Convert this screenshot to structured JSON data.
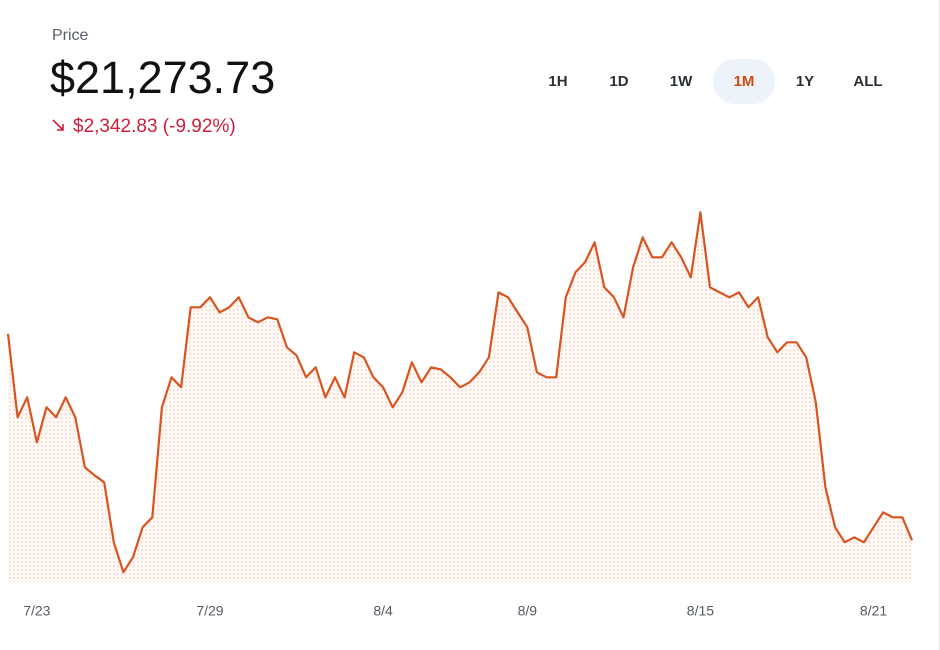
{
  "chart_data": {
    "type": "line",
    "title": "Price",
    "current_price": "$21,273.73",
    "change": "$2,342.83 (-9.92%)",
    "ranges": [
      "1H",
      "1D",
      "1W",
      "1M",
      "1Y",
      "ALL"
    ],
    "selected_range": 3,
    "color": "#d9541e",
    "change_color": "#cc1f3a",
    "ylim": [
      20800,
      25250
    ],
    "categories": [
      null,
      null,
      null,
      "7/23",
      null,
      null,
      null,
      null,
      null,
      null,
      null,
      null,
      null,
      null,
      null,
      null,
      null,
      null,
      null,
      null,
      null,
      "7/29",
      null,
      null,
      null,
      null,
      null,
      null,
      null,
      null,
      null,
      null,
      null,
      null,
      null,
      null,
      null,
      null,
      null,
      "8/4",
      null,
      null,
      null,
      null,
      null,
      null,
      null,
      null,
      null,
      null,
      null,
      null,
      null,
      null,
      "8/9",
      null,
      null,
      null,
      null,
      null,
      null,
      null,
      null,
      null,
      null,
      null,
      null,
      null,
      null,
      null,
      null,
      null,
      "8/15",
      null,
      null,
      null,
      null,
      null,
      null,
      null,
      null,
      null,
      null,
      null,
      null,
      null,
      null,
      null,
      null,
      null,
      "8/21",
      null,
      null,
      null,
      null
    ],
    "values": [
      23616.56,
      22670,
      22897,
      22386,
      22783,
      22670,
      22897,
      22670,
      22102,
      22011,
      21932,
      21251,
      20911,
      21081,
      21421,
      21535,
      22783,
      23124,
      23010,
      23918,
      23918,
      24032,
      23861,
      23918,
      24032,
      23805,
      23748,
      23805,
      23782,
      23464,
      23373,
      23124,
      23237,
      22897,
      23124,
      22897,
      23407,
      23351,
      23124,
      23010,
      22783,
      22953,
      23294,
      23067,
      23237,
      23214,
      23124,
      23010,
      23067,
      23181,
      23351,
      24088,
      24032,
      23861,
      23691,
      23181,
      23124,
      23124,
      24032,
      24315,
      24429,
      24656,
      24145,
      24032,
      23805,
      24372,
      24713,
      24486,
      24486,
      24656,
      24486,
      24259,
      24996,
      24145,
      24088,
      24032,
      24088,
      23918,
      24032,
      23578,
      23407,
      23521,
      23521,
      23351,
      22840,
      21875,
      21421,
      21251,
      21308,
      21251,
      21421,
      21591,
      21535,
      21535,
      21273.73
    ]
  }
}
